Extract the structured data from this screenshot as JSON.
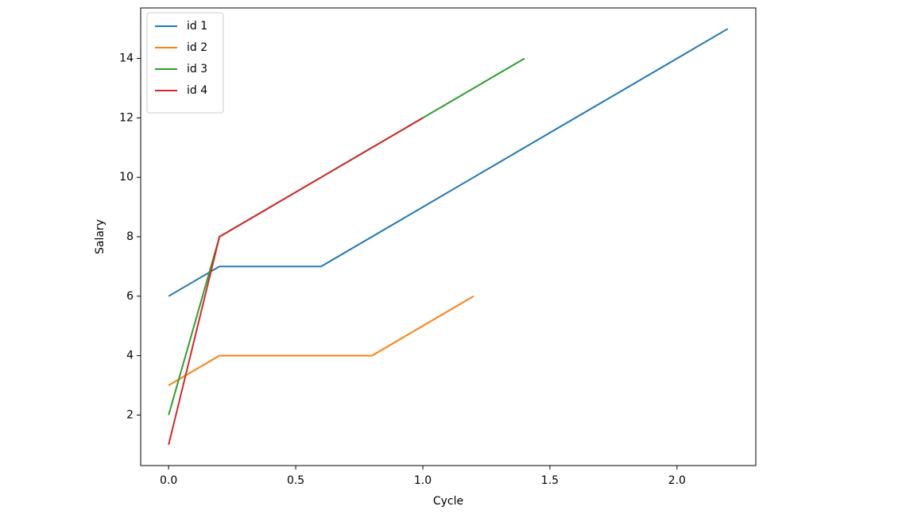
{
  "chart_data": {
    "type": "line",
    "xlabel": "Cycle",
    "ylabel": "Salary",
    "xlim": [
      -0.11,
      2.31
    ],
    "ylim": [
      0.3,
      15.7
    ],
    "xticks": [
      {
        "value": 0,
        "label": "0.0"
      },
      {
        "value": 0.5,
        "label": "0.5"
      },
      {
        "value": 1,
        "label": "1.0"
      },
      {
        "value": 1.5,
        "label": "1.5"
      },
      {
        "value": 2,
        "label": "2.0"
      }
    ],
    "yticks": [
      2,
      4,
      6,
      8,
      10,
      12,
      14
    ],
    "grid": false,
    "legend": "upper left",
    "series": [
      {
        "name": "id 1",
        "color": "#1f77b4",
        "x": [
          0,
          0.2,
          0.4,
          0.6,
          0.8,
          1.0,
          1.2,
          1.4,
          1.6,
          1.8,
          2.0,
          2.2
        ],
        "values": [
          6,
          7,
          7,
          7,
          8,
          9,
          10,
          11,
          12,
          13,
          14,
          15
        ]
      },
      {
        "name": "id 2",
        "color": "#ff7f0e",
        "x": [
          0,
          0.2,
          0.4,
          0.6,
          0.8,
          1.0,
          1.2
        ],
        "values": [
          3,
          4,
          4,
          4,
          4,
          5,
          6
        ]
      },
      {
        "name": "id 3",
        "color": "#2ca02c",
        "x": [
          0,
          0.2,
          0.4,
          0.6,
          0.8,
          1.0,
          1.2,
          1.4
        ],
        "values": [
          2,
          8,
          9,
          10,
          11,
          12,
          13,
          14
        ]
      },
      {
        "name": "id 4",
        "color": "#d62728",
        "x": [
          0,
          0.2,
          0.4,
          0.6,
          0.8,
          1.0
        ],
        "values": [
          1,
          8,
          9,
          10,
          11,
          12
        ]
      }
    ]
  }
}
